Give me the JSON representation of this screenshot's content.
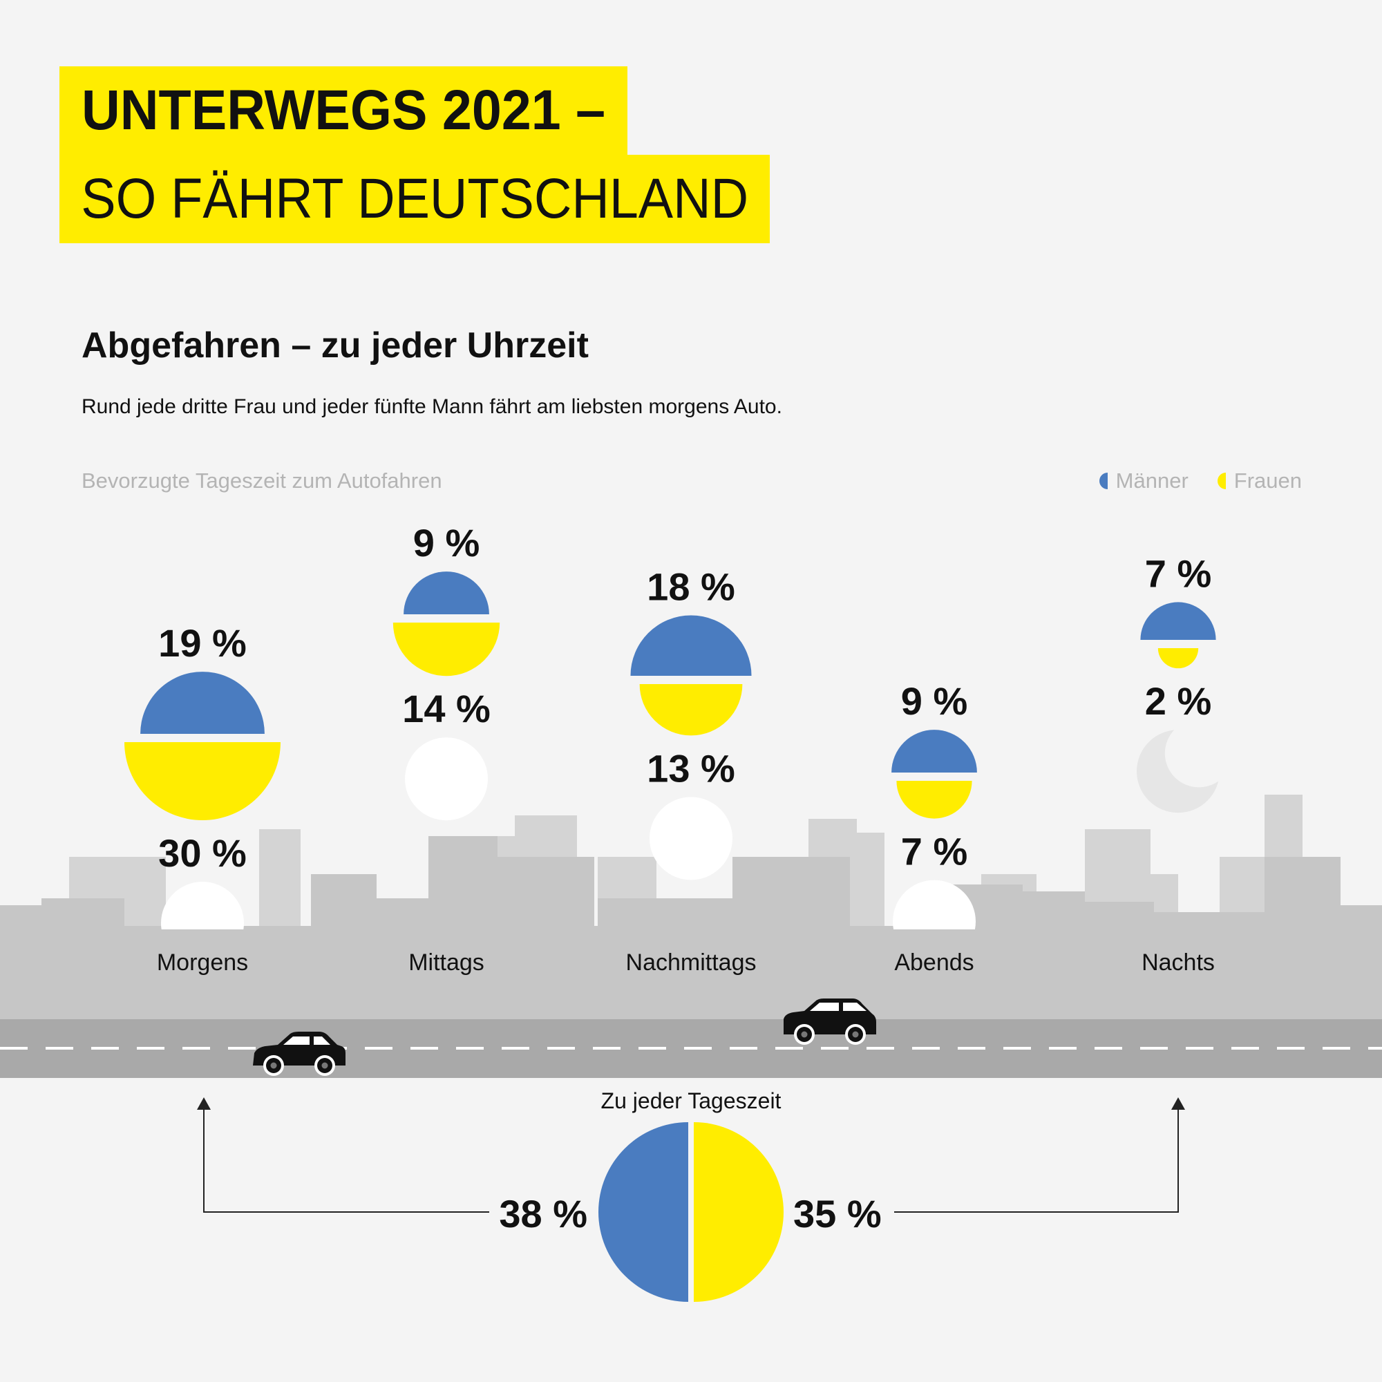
{
  "header": {
    "title_line1": "UNTERWEGS 2021 –",
    "title_line2": "SO FÄHRT DEUTSCHLAND"
  },
  "section": {
    "subtitle": "Abgefahren – zu jeder Uhrzeit",
    "lede": "Rund jede dritte Frau und jeder fünfte Mann fährt am liebsten morgens Auto."
  },
  "colors": {
    "men": "#4a7cc0",
    "women": "#ffed00",
    "buildings_light": "#d4d4d4",
    "buildings_dark": "#c6c6c6",
    "road": "#a9a9a9",
    "sun": "#ffffff",
    "moon": "#e6e6e6"
  },
  "icons": {
    "day": "sun-icon",
    "night": "moon-icon",
    "vehicle": "car-icon"
  },
  "chart_data": [
    {
      "type": "bar",
      "title": "Bevorzugte Tageszeit zum Autofahren",
      "encoding": "half-circle area",
      "legend_position": "top-right",
      "categories": [
        "Morgens",
        "Mittags",
        "Nachmittags",
        "Abends",
        "Nachts"
      ],
      "series": [
        {
          "name": "Männer",
          "values": [
            19,
            9,
            18,
            9,
            7
          ]
        },
        {
          "name": "Frauen",
          "values": [
            30,
            14,
            13,
            7,
            2
          ]
        }
      ],
      "value_labels": {
        "Männer": [
          "19 %",
          "9 %",
          "18 %",
          "9 %",
          "7 %"
        ],
        "Frauen": [
          "30 %",
          "14 %",
          "13 %",
          "7 %",
          "2 %"
        ]
      }
    },
    {
      "type": "pie",
      "title": "Zu jeder Tageszeit",
      "categories": [
        "Männer",
        "Frauen"
      ],
      "values": [
        38,
        35
      ],
      "value_labels": [
        "38 %",
        "35 %"
      ]
    }
  ]
}
